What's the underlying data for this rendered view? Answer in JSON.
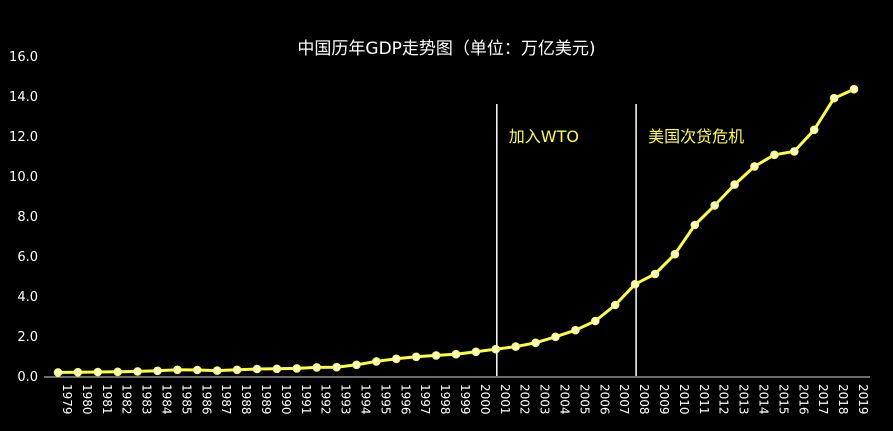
{
  "chart_data": {
    "type": "line",
    "title": "中国历年GDP走势图（单位：万亿美元)",
    "xlabel": "",
    "ylabel": "",
    "ylim": [
      0,
      16
    ],
    "yticks": [
      "0.0",
      "2.0",
      "4.0",
      "6.0",
      "8.0",
      "10.0",
      "12.0",
      "14.0",
      "16.0"
    ],
    "grid": false,
    "line_color": "#ffff3b",
    "marker_color": "#fffbcf",
    "categories": [
      "1979",
      "1980",
      "1981",
      "1982",
      "1983",
      "1984",
      "1985",
      "1986",
      "1987",
      "1988",
      "1989",
      "1990",
      "1991",
      "1992",
      "1993",
      "1994",
      "1995",
      "1996",
      "1997",
      "1998",
      "1999",
      "2000",
      "2001",
      "2002",
      "2003",
      "2004",
      "2005",
      "2006",
      "2007",
      "2008",
      "2009",
      "2010",
      "2011",
      "2012",
      "2013",
      "2014",
      "2015",
      "2016",
      "2017",
      "2018",
      "2019"
    ],
    "series": [
      {
        "values": [
          0.18,
          0.19,
          0.2,
          0.21,
          0.23,
          0.26,
          0.31,
          0.3,
          0.27,
          0.31,
          0.35,
          0.36,
          0.38,
          0.43,
          0.44,
          0.56,
          0.73,
          0.86,
          0.96,
          1.03,
          1.09,
          1.21,
          1.34,
          1.47,
          1.66,
          1.96,
          2.29,
          2.75,
          3.55,
          4.59,
          5.1,
          6.09,
          7.55,
          8.53,
          9.57,
          10.48,
          11.06,
          11.23,
          12.31,
          13.89,
          14.34
        ]
      }
    ],
    "annotations": [
      {
        "label": "加入WTO",
        "x": "2001"
      },
      {
        "label": "美国次贷危机",
        "x": "2008"
      }
    ]
  }
}
